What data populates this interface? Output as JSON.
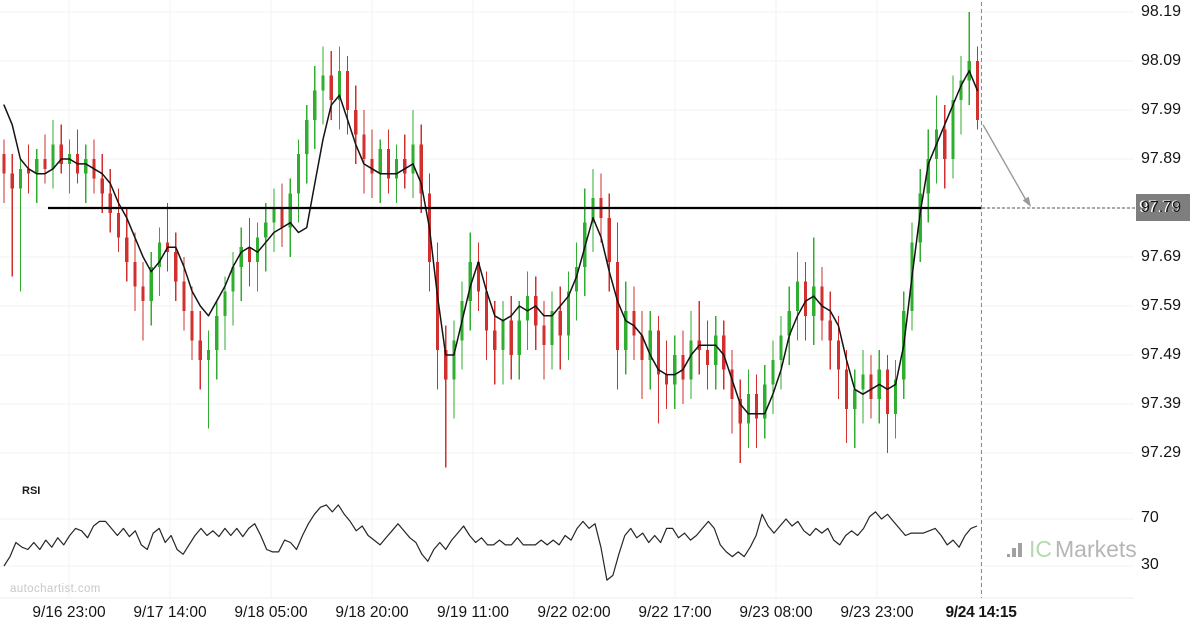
{
  "watermarks": {
    "site": "autochartist.com",
    "broker_icon": "bar-chart-icon",
    "broker_ic": "IC",
    "broker_markets": "Markets"
  },
  "chart_data": {
    "type": "candlestick",
    "title": "",
    "price_ticks": [
      98.19,
      98.09,
      97.99,
      97.89,
      97.79,
      97.69,
      97.59,
      97.49,
      97.39,
      97.29
    ],
    "time_ticks": [
      {
        "label": "9/16 23:00",
        "bold": false
      },
      {
        "label": "9/17 14:00",
        "bold": false
      },
      {
        "label": "9/18 05:00",
        "bold": false
      },
      {
        "label": "9/18 20:00",
        "bold": false
      },
      {
        "label": "9/19 11:00",
        "bold": false
      },
      {
        "label": "9/22 02:00",
        "bold": false
      },
      {
        "label": "9/22 17:00",
        "bold": false
      },
      {
        "label": "9/23 08:00",
        "bold": false
      },
      {
        "label": "9/23 23:00",
        "bold": false
      },
      {
        "label": "9/24 14:15",
        "bold": true
      }
    ],
    "level": {
      "price": 97.79,
      "label": "97.79"
    },
    "forecast_arrow": {
      "from_price": 97.96,
      "to_price": 97.79
    },
    "colors": {
      "up": "#2fae2f",
      "down": "#d22f2f",
      "ma": "#141414",
      "level": "#000000",
      "arrow": "#9a9a9a",
      "grid": "#f5f1f1",
      "flag_bg": "#7e7e7e"
    },
    "candles": [
      [
        97.9,
        97.93,
        97.8,
        97.86
      ],
      [
        97.86,
        97.9,
        97.65,
        97.83
      ],
      [
        97.83,
        97.89,
        97.62,
        97.87
      ],
      [
        97.87,
        97.92,
        97.82,
        97.86
      ],
      [
        97.86,
        97.91,
        97.8,
        97.89
      ],
      [
        97.89,
        97.94,
        97.84,
        97.87
      ],
      [
        97.87,
        97.97,
        97.83,
        97.92
      ],
      [
        97.92,
        97.96,
        97.86,
        97.88
      ],
      [
        97.88,
        97.93,
        97.82,
        97.9
      ],
      [
        97.9,
        97.95,
        97.84,
        97.86
      ],
      [
        97.86,
        97.92,
        97.8,
        97.89
      ],
      [
        97.89,
        97.93,
        97.82,
        97.85
      ],
      [
        97.85,
        97.9,
        97.78,
        97.82
      ],
      [
        97.82,
        97.87,
        97.74,
        97.78
      ],
      [
        97.78,
        97.83,
        97.7,
        97.73
      ],
      [
        97.73,
        97.79,
        97.64,
        97.68
      ],
      [
        97.68,
        97.74,
        97.58,
        97.63
      ],
      [
        97.63,
        97.68,
        97.52,
        97.6
      ],
      [
        97.6,
        97.7,
        97.55,
        97.67
      ],
      [
        97.67,
        97.75,
        97.61,
        97.72
      ],
      [
        97.72,
        97.8,
        97.66,
        97.7
      ],
      [
        97.7,
        97.74,
        97.6,
        97.64
      ],
      [
        97.64,
        97.69,
        97.54,
        97.58
      ],
      [
        97.58,
        97.63,
        97.48,
        97.52
      ],
      [
        97.52,
        97.58,
        97.42,
        97.48
      ],
      [
        97.48,
        97.54,
        97.34,
        97.5
      ],
      [
        97.5,
        97.6,
        97.44,
        97.57
      ],
      [
        97.57,
        97.65,
        97.5,
        97.62
      ],
      [
        97.62,
        97.7,
        97.55,
        97.67
      ],
      [
        97.67,
        97.75,
        97.6,
        97.71
      ],
      [
        97.71,
        97.77,
        97.63,
        97.68
      ],
      [
        97.68,
        97.76,
        97.62,
        97.73
      ],
      [
        97.73,
        97.8,
        97.66,
        97.76
      ],
      [
        97.76,
        97.83,
        97.7,
        97.79
      ],
      [
        97.79,
        97.84,
        97.71,
        97.75
      ],
      [
        97.75,
        97.85,
        97.69,
        97.82
      ],
      [
        97.82,
        97.93,
        97.76,
        97.9
      ],
      [
        97.9,
        98.0,
        97.84,
        97.97
      ],
      [
        97.97,
        98.08,
        97.91,
        98.03
      ],
      [
        98.03,
        98.12,
        97.96,
        98.06
      ],
      [
        98.06,
        98.11,
        97.97,
        98.01
      ],
      [
        98.01,
        98.12,
        97.95,
        98.07
      ],
      [
        98.07,
        98.1,
        97.94,
        97.99
      ],
      [
        97.99,
        98.04,
        97.88,
        97.94
      ],
      [
        97.94,
        97.99,
        97.82,
        97.89
      ],
      [
        97.89,
        97.95,
        97.81,
        97.86
      ],
      [
        97.86,
        97.93,
        97.8,
        97.91
      ],
      [
        97.91,
        97.95,
        97.82,
        97.85
      ],
      [
        97.85,
        97.92,
        97.8,
        97.89
      ],
      [
        97.89,
        97.94,
        97.83,
        97.86
      ],
      [
        97.86,
        97.99,
        97.81,
        97.92
      ],
      [
        97.92,
        97.96,
        97.78,
        97.82
      ],
      [
        97.82,
        97.86,
        97.62,
        97.68
      ],
      [
        97.68,
        97.72,
        97.42,
        97.5
      ],
      [
        97.5,
        97.55,
        97.26,
        97.44
      ],
      [
        97.44,
        97.56,
        97.36,
        97.52
      ],
      [
        97.52,
        97.64,
        97.46,
        97.6
      ],
      [
        97.6,
        97.74,
        97.54,
        97.68
      ],
      [
        97.68,
        97.72,
        97.58,
        97.62
      ],
      [
        97.62,
        97.66,
        97.48,
        97.54
      ],
      [
        97.54,
        97.6,
        97.43,
        97.5
      ],
      [
        97.5,
        97.6,
        97.43,
        97.56
      ],
      [
        97.56,
        97.61,
        97.44,
        97.49
      ],
      [
        97.49,
        97.6,
        97.44,
        97.56
      ],
      [
        97.56,
        97.66,
        97.5,
        97.61
      ],
      [
        97.61,
        97.65,
        97.5,
        97.55
      ],
      [
        97.55,
        97.6,
        97.44,
        97.51
      ],
      [
        97.51,
        97.62,
        97.46,
        97.58
      ],
      [
        97.58,
        97.63,
        97.46,
        97.53
      ],
      [
        97.53,
        97.66,
        97.48,
        97.62
      ],
      [
        97.62,
        97.72,
        97.56,
        97.67
      ],
      [
        97.67,
        97.83,
        97.61,
        97.76
      ],
      [
        97.76,
        97.87,
        97.7,
        97.81
      ],
      [
        97.81,
        97.86,
        97.72,
        97.77
      ],
      [
        97.77,
        97.82,
        97.62,
        97.68
      ],
      [
        97.68,
        97.76,
        97.42,
        97.5
      ],
      [
        97.5,
        97.64,
        97.45,
        97.58
      ],
      [
        97.58,
        97.63,
        97.48,
        97.53
      ],
      [
        97.53,
        97.58,
        97.4,
        97.48
      ],
      [
        97.48,
        97.58,
        97.42,
        97.54
      ],
      [
        97.54,
        97.57,
        97.35,
        97.45
      ],
      [
        97.45,
        97.52,
        97.38,
        97.43
      ],
      [
        97.43,
        97.53,
        97.38,
        97.49
      ],
      [
        97.49,
        97.54,
        97.39,
        97.44
      ],
      [
        97.44,
        97.58,
        97.4,
        97.52
      ],
      [
        97.52,
        97.6,
        97.45,
        97.5
      ],
      [
        97.5,
        97.56,
        97.42,
        97.47
      ],
      [
        97.47,
        97.57,
        97.42,
        97.53
      ],
      [
        97.53,
        97.56,
        97.42,
        97.46
      ],
      [
        97.46,
        97.5,
        97.33,
        97.4
      ],
      [
        97.4,
        97.44,
        97.27,
        97.35
      ],
      [
        97.35,
        97.46,
        97.3,
        97.41
      ],
      [
        97.41,
        97.45,
        97.3,
        97.36
      ],
      [
        97.36,
        97.47,
        97.32,
        97.43
      ],
      [
        97.43,
        97.52,
        97.37,
        97.48
      ],
      [
        97.48,
        97.57,
        97.42,
        97.53
      ],
      [
        97.53,
        97.63,
        97.47,
        97.58
      ],
      [
        97.58,
        97.7,
        97.52,
        97.64
      ],
      [
        97.64,
        97.68,
        97.52,
        97.57
      ],
      [
        97.57,
        97.73,
        97.51,
        97.63
      ],
      [
        97.63,
        97.67,
        97.52,
        97.56
      ],
      [
        97.56,
        97.62,
        97.46,
        97.52
      ],
      [
        97.52,
        97.57,
        97.4,
        97.46
      ],
      [
        97.46,
        97.5,
        97.31,
        97.38
      ],
      [
        97.38,
        97.46,
        97.3,
        97.42
      ],
      [
        97.42,
        97.5,
        97.35,
        97.45
      ],
      [
        97.45,
        97.49,
        97.36,
        97.4
      ],
      [
        97.4,
        97.5,
        97.35,
        97.46
      ],
      [
        97.46,
        97.49,
        97.29,
        97.37
      ],
      [
        97.37,
        97.48,
        97.32,
        97.44
      ],
      [
        97.44,
        97.62,
        97.4,
        97.58
      ],
      [
        97.58,
        97.76,
        97.54,
        97.72
      ],
      [
        97.72,
        97.87,
        97.68,
        97.82
      ],
      [
        97.82,
        97.95,
        97.76,
        97.89
      ],
      [
        97.89,
        98.02,
        97.84,
        97.95
      ],
      [
        97.95,
        98.0,
        97.83,
        97.89
      ],
      [
        97.89,
        98.06,
        97.85,
        98.01
      ],
      [
        98.01,
        98.1,
        97.94,
        98.05
      ],
      [
        98.05,
        98.19,
        98.0,
        98.09
      ],
      [
        98.09,
        98.12,
        97.95,
        97.97
      ]
    ],
    "ma": [
      98.0,
      97.96,
      97.89,
      97.87,
      97.86,
      97.86,
      97.87,
      97.89,
      97.89,
      97.88,
      97.88,
      97.87,
      97.86,
      97.84,
      97.8,
      97.77,
      97.73,
      97.69,
      97.66,
      97.68,
      97.71,
      97.71,
      97.67,
      97.62,
      97.59,
      97.57,
      97.6,
      97.63,
      97.67,
      97.7,
      97.71,
      97.7,
      97.72,
      97.74,
      97.75,
      97.76,
      97.74,
      97.75,
      97.84,
      97.93,
      98.0,
      98.02,
      97.97,
      97.92,
      97.88,
      97.87,
      97.86,
      97.86,
      97.86,
      97.87,
      97.88,
      97.84,
      97.75,
      97.61,
      97.49,
      97.49,
      97.56,
      97.63,
      97.68,
      97.62,
      97.57,
      97.56,
      97.57,
      97.59,
      97.58,
      97.59,
      97.57,
      97.57,
      97.59,
      97.61,
      97.65,
      97.71,
      97.77,
      97.73,
      97.66,
      97.6,
      97.56,
      97.55,
      97.53,
      97.49,
      97.46,
      97.45,
      97.45,
      97.46,
      97.49,
      97.51,
      97.51,
      97.51,
      97.49,
      97.44,
      97.39,
      97.37,
      97.37,
      97.37,
      97.41,
      97.46,
      97.53,
      97.57,
      97.6,
      97.61,
      97.59,
      97.58,
      97.55,
      97.48,
      97.42,
      97.41,
      97.42,
      97.43,
      97.42,
      97.43,
      97.51,
      97.65,
      97.78,
      97.88,
      97.92,
      97.96,
      98.0,
      98.04,
      98.07,
      98.03
    ],
    "indicator": {
      "name": "RSI",
      "ticks": [
        70,
        30
      ],
      "values": [
        30,
        38,
        50,
        46,
        44,
        50,
        44,
        52,
        46,
        54,
        48,
        56,
        62,
        60,
        54,
        64,
        68,
        68,
        62,
        56,
        62,
        55,
        60,
        48,
        44,
        58,
        62,
        50,
        56,
        44,
        40,
        48,
        56,
        62,
        56,
        60,
        55,
        62,
        56,
        62,
        55,
        62,
        66,
        56,
        44,
        42,
        42,
        52,
        50,
        44,
        56,
        66,
        74,
        80,
        82,
        76,
        82,
        74,
        68,
        60,
        64,
        56,
        52,
        48,
        54,
        60,
        66,
        60,
        54,
        50,
        40,
        34,
        44,
        50,
        44,
        52,
        58,
        64,
        56,
        50,
        54,
        48,
        48,
        52,
        48,
        48,
        54,
        48,
        48,
        48,
        52,
        48,
        52,
        48,
        56,
        52,
        62,
        68,
        62,
        66,
        46,
        18,
        22,
        40,
        56,
        62,
        54,
        58,
        50,
        56,
        50,
        62,
        62,
        54,
        58,
        52,
        56,
        62,
        68,
        62,
        48,
        42,
        38,
        42,
        38,
        46,
        56,
        74,
        64,
        58,
        64,
        70,
        64,
        68,
        60,
        56,
        62,
        58,
        62,
        52,
        48,
        56,
        60,
        56,
        62,
        72,
        76,
        70,
        74,
        68,
        62,
        56,
        58,
        58,
        58,
        60,
        62,
        56,
        48,
        52,
        46,
        56,
        62,
        64
      ]
    }
  }
}
